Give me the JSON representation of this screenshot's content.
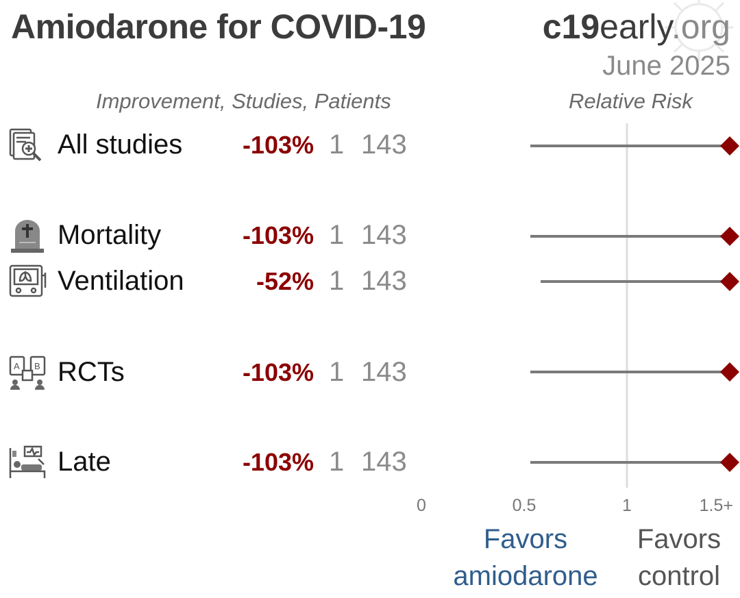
{
  "header": {
    "title": "Amiodarone for COVID-19",
    "brand_part1": "c19",
    "brand_part2": "early",
    "brand_part3": ".org",
    "date": "June 2025"
  },
  "columns": {
    "left_header": "Improvement, Studies, Patients",
    "right_header": "Relative Risk"
  },
  "rows": [
    {
      "label": "All studies",
      "improvement": "-103%",
      "studies": "1",
      "patients": "143",
      "icon": "document-search-icon"
    },
    {
      "label": "Mortality",
      "improvement": "-103%",
      "studies": "1",
      "patients": "143",
      "icon": "tombstone-icon"
    },
    {
      "label": "Ventilation",
      "improvement": "-52%",
      "studies": "1",
      "patients": "143",
      "icon": "ventilator-lungs-icon"
    },
    {
      "label": "RCTs",
      "improvement": "-103%",
      "studies": "1",
      "patients": "143",
      "icon": "ab-trial-icon"
    },
    {
      "label": "Late",
      "improvement": "-103%",
      "studies": "1",
      "patients": "143",
      "icon": "hospital-bed-icon"
    }
  ],
  "favors": {
    "left_line1": "Favors",
    "left_line2": "amiodarone",
    "right_line1": "Favors",
    "right_line2": "control"
  },
  "colors": {
    "accent_red": "#8b0000",
    "favors_blue": "#2f5d8c",
    "ci_line": "#7a7a7a",
    "ref_line": "#dddddd"
  },
  "chart_data": {
    "type": "forest",
    "x_axis": {
      "ticks": [
        0,
        0.5,
        1,
        1.5
      ],
      "tick_labels": [
        "0",
        "0.5",
        "1",
        "1.5+"
      ],
      "range": [
        0,
        1.5
      ],
      "reference_line": 1
    },
    "series": [
      {
        "label": "All studies",
        "rr": 1.5,
        "ci_low": 0.53,
        "ci_high": 1.5
      },
      {
        "label": "Mortality",
        "rr": 1.5,
        "ci_low": 0.53,
        "ci_high": 1.5
      },
      {
        "label": "Ventilation",
        "rr": 1.5,
        "ci_low": 0.58,
        "ci_high": 1.5
      },
      {
        "label": "RCTs",
        "rr": 1.5,
        "ci_low": 0.53,
        "ci_high": 1.5
      },
      {
        "label": "Late",
        "rr": 1.5,
        "ci_low": 0.53,
        "ci_high": 1.5
      }
    ]
  }
}
